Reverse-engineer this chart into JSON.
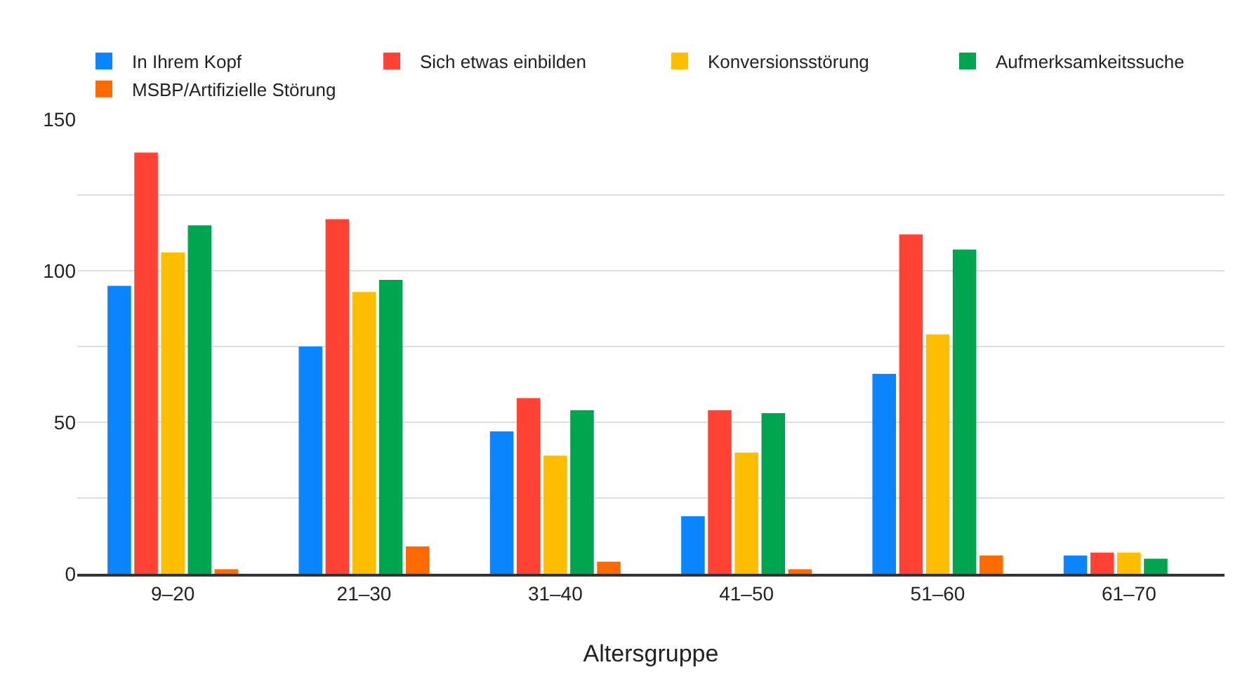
{
  "chart_data": {
    "type": "bar",
    "xlabel": "Altersgruppe",
    "categories": [
      "9–20",
      "21–30",
      "31–40",
      "41–50",
      "51–60",
      "61–70"
    ],
    "series": [
      {
        "name": "In Ihrem Kopf",
        "color": "#0a84ff",
        "values": [
          95,
          75,
          47,
          19,
          66,
          6
        ]
      },
      {
        "name": "Sich etwas einbilden",
        "color": "#ff4233",
        "values": [
          139,
          117,
          58,
          54,
          112,
          7
        ]
      },
      {
        "name": "Konversionsstörung",
        "color": "#ffbf00",
        "values": [
          106,
          93,
          39,
          40,
          79,
          7
        ]
      },
      {
        "name": "Aufmerksamkeitssuche",
        "color": "#00a64f",
        "values": [
          115,
          97,
          54,
          53,
          107,
          5
        ]
      },
      {
        "name": "MSBP/Artifizielle Störung",
        "color": "#ff6a00",
        "values": [
          1.5,
          9,
          4,
          1.5,
          6,
          0
        ]
      }
    ],
    "ylim": [
      0,
      150
    ],
    "yticks": [
      0,
      {
        "value": 25,
        "label": null
      },
      50,
      {
        "value": 75,
        "label": null
      },
      100,
      {
        "value": 125,
        "label": null
      },
      150
    ],
    "grid": "y",
    "legend": "top"
  }
}
